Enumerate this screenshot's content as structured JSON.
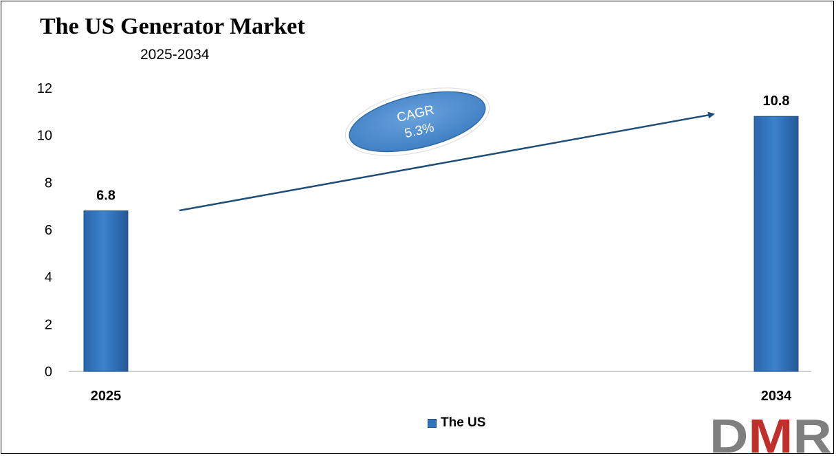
{
  "chart_data": {
    "type": "bar",
    "title": "The US Generator Market",
    "subtitle": "2025-2034",
    "categories": [
      "2025",
      "2034"
    ],
    "series": [
      {
        "name": "The US",
        "values": [
          6.8,
          10.8
        ]
      }
    ],
    "data_labels": [
      "6.8",
      "10.8"
    ],
    "ylim": [
      0,
      12
    ],
    "yticks": [
      0,
      2,
      4,
      6,
      8,
      10,
      12
    ],
    "grid": false,
    "legend_position": "bottom",
    "annotation": {
      "line1": "CAGR",
      "line2": "5.3%"
    },
    "colors": {
      "bar": "#2f74c0",
      "arrow": "#1f4e79",
      "ellipse": "#4f8fd0"
    }
  },
  "logo": {
    "text": "DMR"
  }
}
